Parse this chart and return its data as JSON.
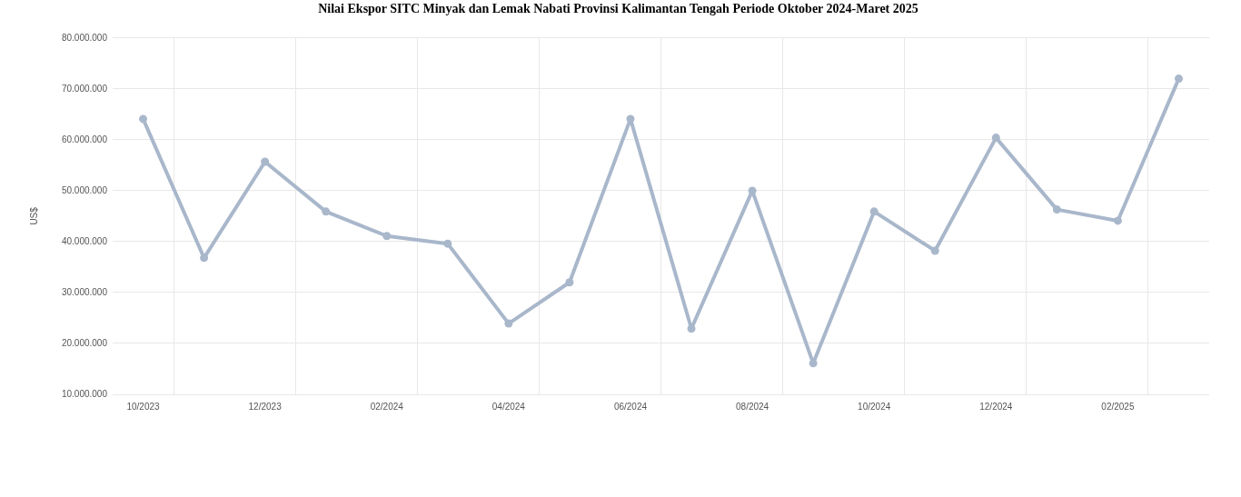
{
  "chart_data": {
    "type": "line",
    "title": "Nilai Ekspor SITC Minyak dan Lemak Nabati Provinsi Kalimantan Tengah Periode Oktober 2024-Maret 2025",
    "ylabel": "US$",
    "categories": [
      "10/2023",
      null,
      "12/2023",
      null,
      "02/2024",
      null,
      "04/2024",
      null,
      "06/2024",
      null,
      "08/2024",
      null,
      "10/2024",
      null,
      "12/2024",
      null,
      "02/2025",
      null
    ],
    "series": [
      {
        "color": "#a9b7cb",
        "values": [
          64100000,
          36800000,
          55700000,
          45900000,
          41100000,
          39600000,
          23900000,
          32000000,
          64100000,
          22900000,
          50000000,
          16100000,
          45900000,
          38200000,
          60400000,
          46300000,
          44100000,
          72000000
        ]
      }
    ],
    "ylim": [
      10000000,
      80000000
    ],
    "yticks": [
      {
        "value": 10000000,
        "label": "10.000.000"
      },
      {
        "value": 20000000,
        "label": "20.000.000"
      },
      {
        "value": 30000000,
        "label": "30.000.000"
      },
      {
        "value": 40000000,
        "label": "40.000.000"
      },
      {
        "value": 50000000,
        "label": "50.000.000"
      },
      {
        "value": 60000000,
        "label": "60.000.000"
      },
      {
        "value": 70000000,
        "label": "70.000.000"
      },
      {
        "value": 80000000,
        "label": "80.000.000"
      }
    ],
    "grid": true,
    "marker": "circle",
    "line_style": "solid"
  }
}
